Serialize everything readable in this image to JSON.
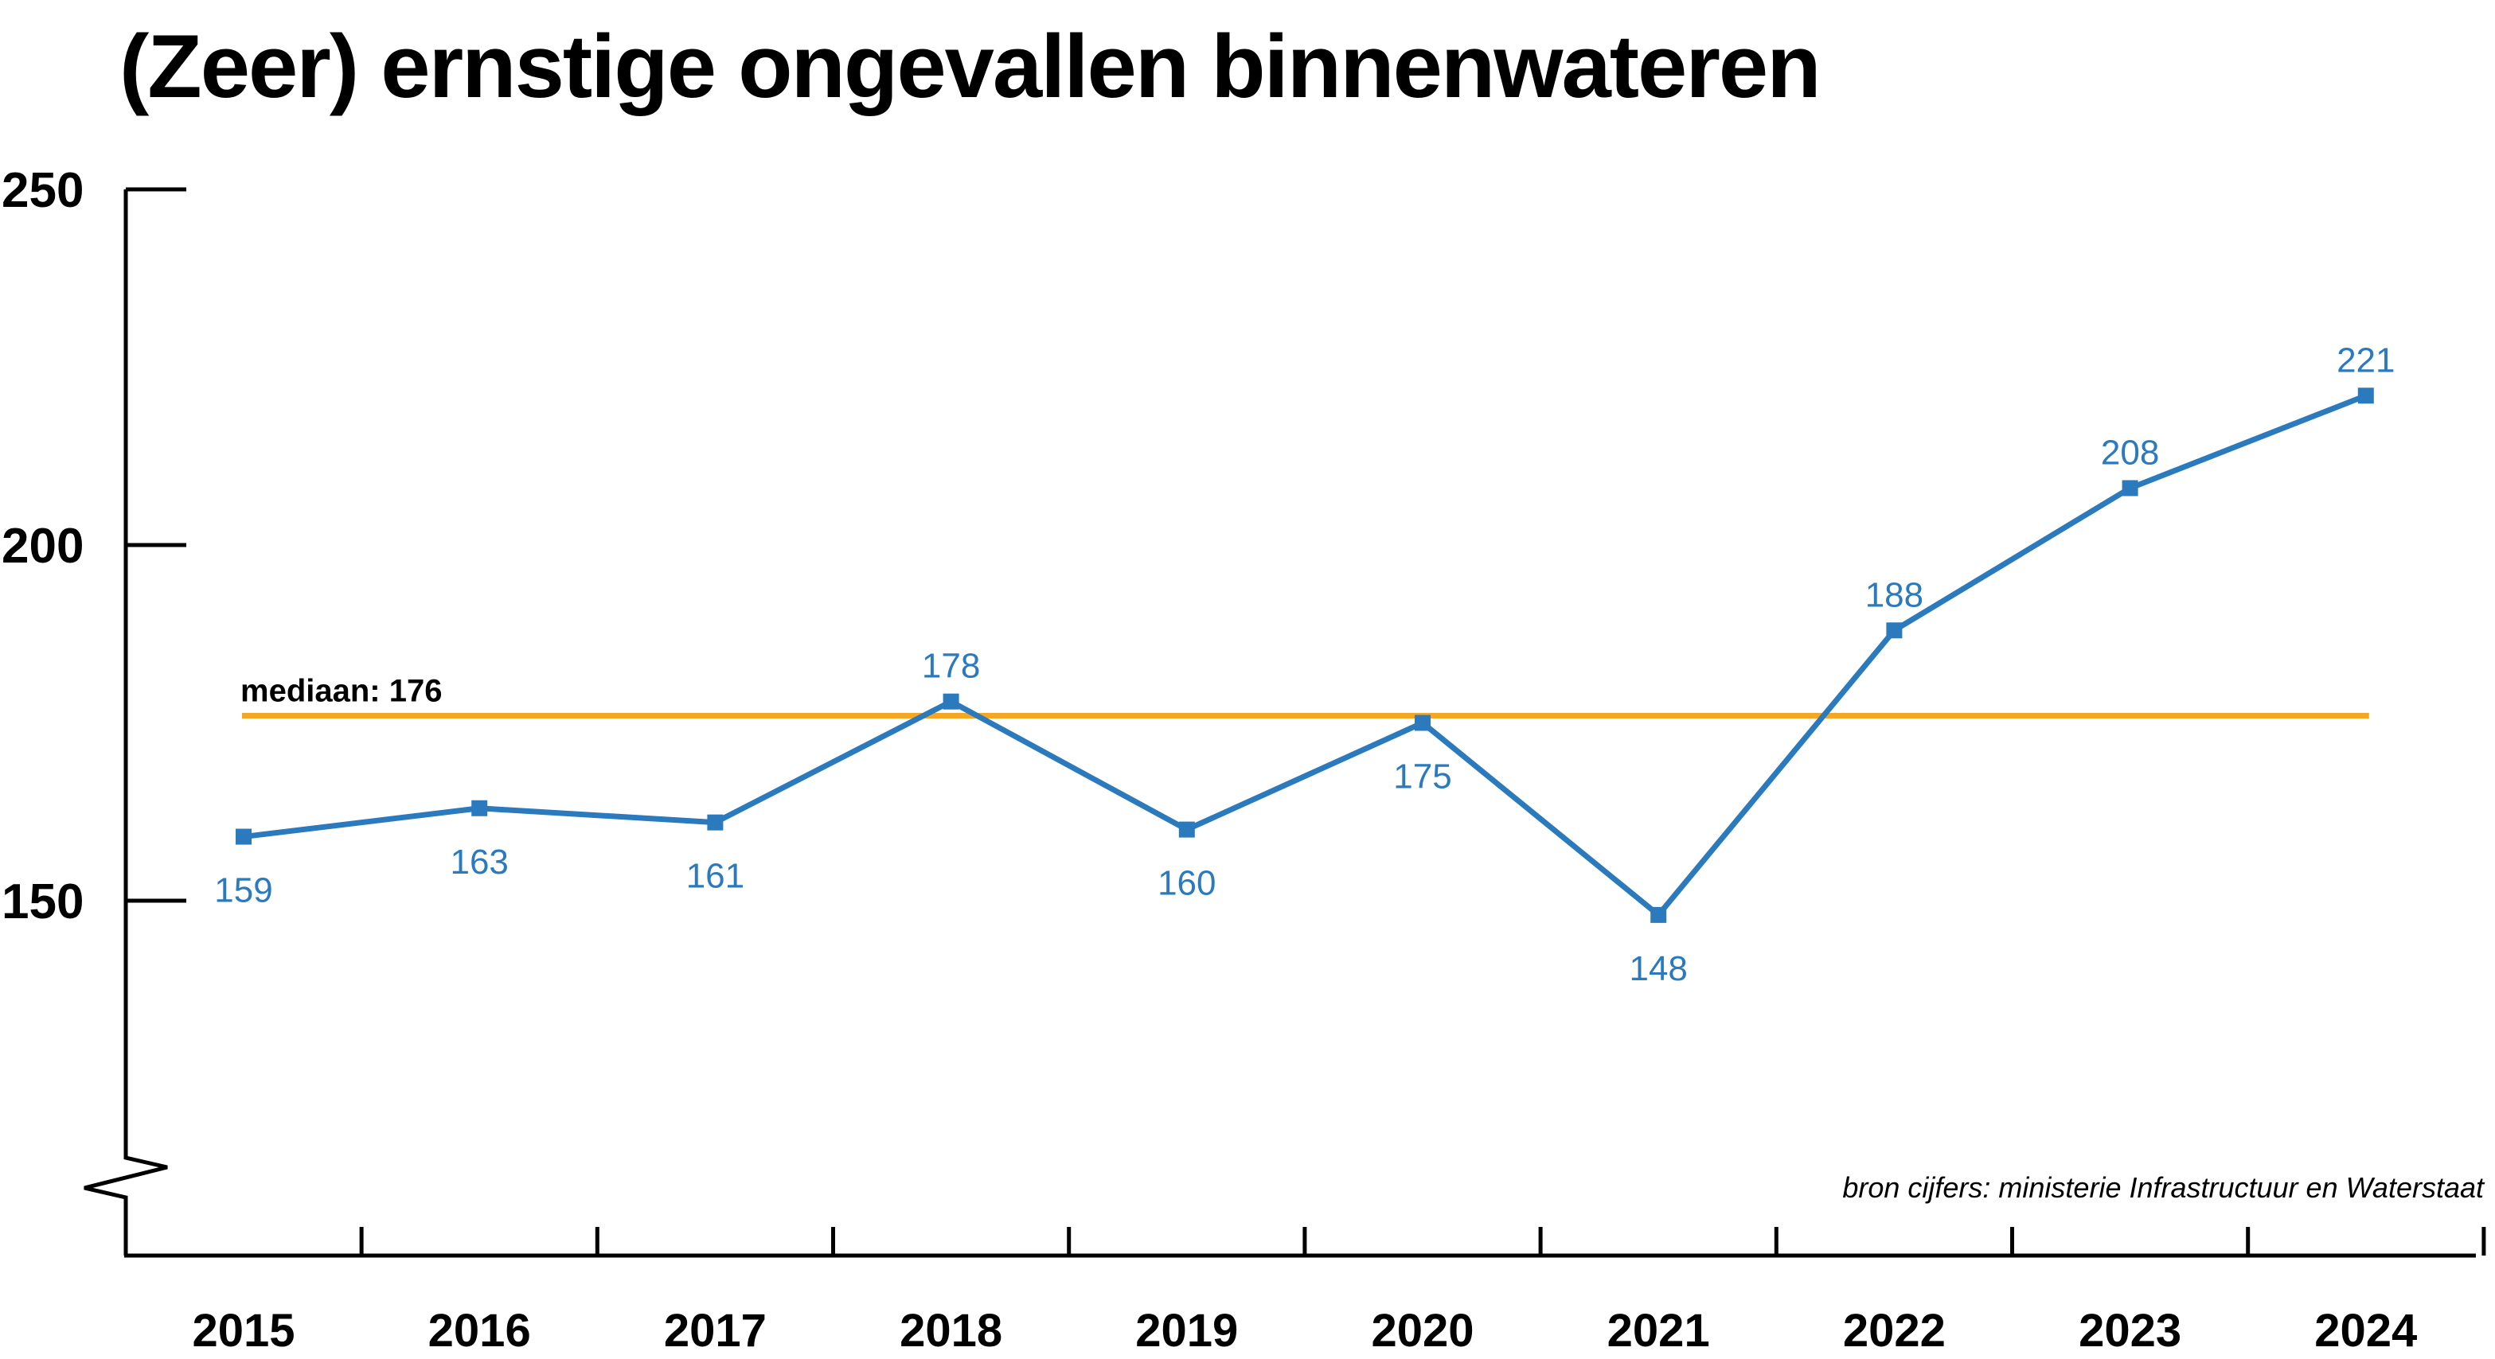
{
  "colors": {
    "line": "#2a7abd",
    "median": "#f5a623",
    "axis": "#000000"
  },
  "chart_data": {
    "type": "line",
    "title": "(Zeer) ernstige ongevallen binnenwateren",
    "categories": [
      "2015",
      "2016",
      "2017",
      "2018",
      "2019",
      "2020",
      "2021",
      "2022",
      "2023",
      "2024"
    ],
    "series": [
      {
        "values": [
          159,
          163,
          161,
          178,
          160,
          175,
          148,
          188,
          208,
          221
        ]
      }
    ],
    "label_position": [
      "below",
      "below",
      "below",
      "above",
      "below",
      "below",
      "below",
      "above",
      "above",
      "above"
    ],
    "median": {
      "value": 176,
      "label": "mediaan: 176"
    },
    "yticks": [
      150,
      200,
      250
    ],
    "ylim": [
      118,
      250
    ],
    "y_axis_break": true,
    "grid": false,
    "source": "bron cijfers: ministerie Infrastructuur en Waterstaat"
  }
}
